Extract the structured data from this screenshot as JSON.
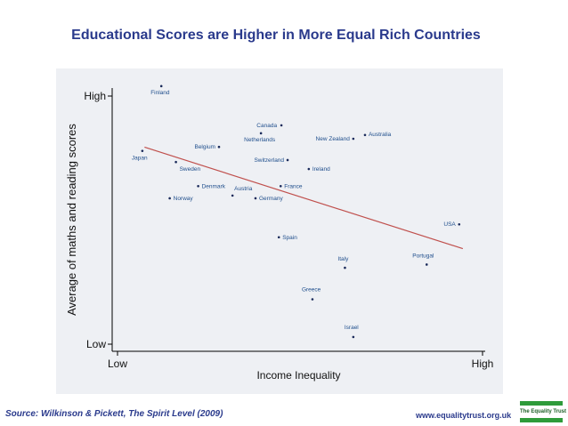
{
  "slide": {
    "title": "Educational Scores are Higher in More Equal Rich Countries",
    "source": "Source: Wilkinson & Pickett, The Spirit Level (2009)",
    "website": "www.equalitytrust.org.uk",
    "logo_text": "The Equality Trust"
  },
  "colors": {
    "title": "#2a3a8c",
    "panel_background": "#eef0f4",
    "trend_line": "#c0504d",
    "axis": "#000000",
    "label_text": "#1f4e8c",
    "logo_green": "#2e9b3a"
  },
  "chart_data": {
    "type": "scatter",
    "title": "",
    "xlabel": "Income Inequality",
    "ylabel": "Average of maths and reading scores",
    "xlim": [
      0,
      100
    ],
    "ylim": [
      0,
      100
    ],
    "x_ticks": [
      {
        "value": 0,
        "label": "Low"
      },
      {
        "value": 100,
        "label": "High"
      }
    ],
    "y_ticks": [
      {
        "value": 0,
        "label": "Low"
      },
      {
        "value": 100,
        "label": "High"
      }
    ],
    "grid": false,
    "points": [
      {
        "name": "Finland",
        "x": 12.0,
        "y": 104.0
      },
      {
        "name": "Canada",
        "x": 44.9,
        "y": 88.2
      },
      {
        "name": "Netherlands",
        "x": 39.3,
        "y": 85.0
      },
      {
        "name": "Australia",
        "x": 67.8,
        "y": 84.3
      },
      {
        "name": "New Zealand",
        "x": 64.6,
        "y": 82.8
      },
      {
        "name": "Belgium",
        "x": 27.8,
        "y": 79.5
      },
      {
        "name": "Japan",
        "x": 6.8,
        "y": 77.9
      },
      {
        "name": "Switzerland",
        "x": 46.6,
        "y": 74.2
      },
      {
        "name": "Sweden",
        "x": 16.0,
        "y": 73.4
      },
      {
        "name": "Ireland",
        "x": 52.4,
        "y": 70.6
      },
      {
        "name": "Denmark",
        "x": 22.1,
        "y": 63.7
      },
      {
        "name": "France",
        "x": 44.7,
        "y": 63.7
      },
      {
        "name": "Austria",
        "x": 31.5,
        "y": 59.9
      },
      {
        "name": "Norway",
        "x": 14.3,
        "y": 58.8
      },
      {
        "name": "Germany",
        "x": 37.8,
        "y": 58.8
      },
      {
        "name": "USA",
        "x": 93.6,
        "y": 48.3
      },
      {
        "name": "Spain",
        "x": 44.2,
        "y": 43.1
      },
      {
        "name": "Portugal",
        "x": 84.7,
        "y": 32.1
      },
      {
        "name": "Italy",
        "x": 62.3,
        "y": 30.8
      },
      {
        "name": "Greece",
        "x": 53.4,
        "y": 18.1
      },
      {
        "name": "Israel",
        "x": 64.6,
        "y": 2.9
      }
    ],
    "trend_line": {
      "x": [
        7.4,
        94.6
      ],
      "y": [
        79.4,
        38.5
      ]
    }
  }
}
